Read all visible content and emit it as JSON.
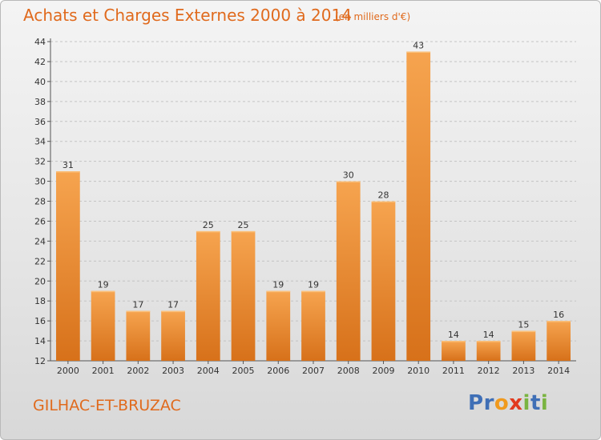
{
  "header": {
    "title": "Achats et Charges Externes 2000 à 2014",
    "subtitle": "(en milliers d'€)"
  },
  "footer": {
    "commune": "GILHAC-ET-BRUZAC",
    "logo": [
      "P",
      "r",
      "o",
      "x",
      "i",
      "t",
      "i"
    ]
  },
  "colors": {
    "accent": "#e06a1d",
    "bar_light": "#f6a44f",
    "bar_dark": "#d7711a",
    "logo_letters": [
      "#3f6fb6",
      "#3f6fb6",
      "#f09a1e",
      "#e23a1f",
      "#7ab441",
      "#3f6fb6",
      "#7ab441"
    ]
  },
  "chart_data": {
    "type": "bar",
    "categories": [
      "2000",
      "2001",
      "2002",
      "2003",
      "2004",
      "2005",
      "2006",
      "2007",
      "2008",
      "2009",
      "2010",
      "2011",
      "2012",
      "2013",
      "2014"
    ],
    "values": [
      31,
      19,
      17,
      17,
      25,
      25,
      19,
      19,
      30,
      28,
      43,
      14,
      14,
      15,
      16
    ],
    "title": "Achats et Charges Externes 2000 à 2014",
    "ylim": [
      12,
      44
    ],
    "yticks": [
      12,
      14,
      16,
      18,
      20,
      22,
      24,
      26,
      28,
      30,
      32,
      34,
      36,
      38,
      40,
      42,
      44
    ],
    "grid": true,
    "data_labels": true
  }
}
